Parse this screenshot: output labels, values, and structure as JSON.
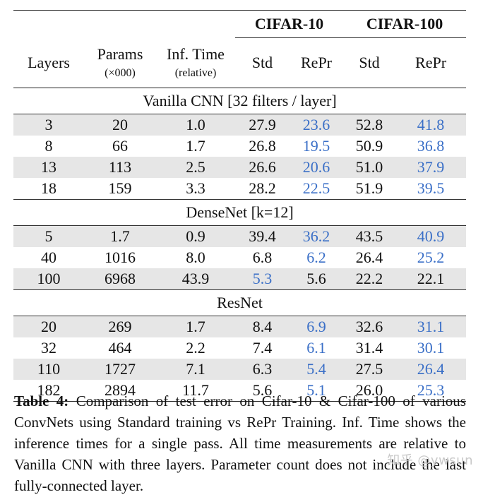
{
  "table": {
    "group_headers": {
      "cifar10": "CIFAR-10",
      "cifar100": "CIFAR-100"
    },
    "columns": {
      "layers": "Layers",
      "params": "Params",
      "params_sub": "(×000)",
      "inf_time": "Inf. Time",
      "inf_time_sub": "(relative)",
      "std": "Std",
      "repr": "RePr"
    },
    "sections": [
      {
        "title": "Vanilla CNN [32 filters / layer]",
        "rows": [
          {
            "layers": "3",
            "params": "20",
            "inf": "1.0",
            "std10": "27.9",
            "repr10": "23.6",
            "std100": "52.8",
            "repr100": "41.8",
            "hl10": true,
            "hl100": true
          },
          {
            "layers": "8",
            "params": "66",
            "inf": "1.7",
            "std10": "26.8",
            "repr10": "19.5",
            "std100": "50.9",
            "repr100": "36.8",
            "hl10": true,
            "hl100": true
          },
          {
            "layers": "13",
            "params": "113",
            "inf": "2.5",
            "std10": "26.6",
            "repr10": "20.6",
            "std100": "51.0",
            "repr100": "37.9",
            "hl10": true,
            "hl100": true
          },
          {
            "layers": "18",
            "params": "159",
            "inf": "3.3",
            "std10": "28.2",
            "repr10": "22.5",
            "std100": "51.9",
            "repr100": "39.5",
            "hl10": true,
            "hl100": true
          }
        ]
      },
      {
        "title": "DenseNet [k=12]",
        "rows": [
          {
            "layers": "5",
            "params": "1.7",
            "inf": "0.9",
            "std10": "39.4",
            "repr10": "36.2",
            "std100": "43.5",
            "repr100": "40.9",
            "hl10": true,
            "hl100": true
          },
          {
            "layers": "40",
            "params": "1016",
            "inf": "8.0",
            "std10": "6.8",
            "repr10": "6.2",
            "std100": "26.4",
            "repr100": "25.2",
            "hl10": true,
            "hl100": true
          },
          {
            "layers": "100",
            "params": "6968",
            "inf": "43.9",
            "std10": "5.3",
            "repr10": "5.6",
            "std100": "22.2",
            "repr100": "22.1",
            "hlstd10": true
          }
        ]
      },
      {
        "title": "ResNet",
        "rows": [
          {
            "layers": "20",
            "params": "269",
            "inf": "1.7",
            "std10": "8.4",
            "repr10": "6.9",
            "std100": "32.6",
            "repr100": "31.1",
            "hl10": true,
            "hl100": true
          },
          {
            "layers": "32",
            "params": "464",
            "inf": "2.2",
            "std10": "7.4",
            "repr10": "6.1",
            "std100": "31.4",
            "repr100": "30.1",
            "hl10": true,
            "hl100": true
          },
          {
            "layers": "110",
            "params": "1727",
            "inf": "7.1",
            "std10": "6.3",
            "repr10": "5.4",
            "std100": "27.5",
            "repr100": "26.4",
            "hl10": true,
            "hl100": true
          },
          {
            "layers": "182",
            "params": "2894",
            "inf": "11.7",
            "std10": "5.6",
            "repr10": "5.1",
            "std100": "26.0",
            "repr100": "25.3",
            "hl10": true,
            "hl100": true
          }
        ]
      }
    ]
  },
  "caption": {
    "label": "Table 4:",
    "text": " Comparison of test error on Cifar-10 & Cifar-100 of various ConvNets using Standard training vs RePr Training. Inf. Time shows the inference times for a single pass.  All time measurements are relative to Vanilla CNN with three layers.  Parameter count does not include the last fully-connected layer."
  },
  "watermark": "知乎 @ywsun",
  "colors": {
    "highlight": "#3a6fc7",
    "shade": "#e6e6e6"
  }
}
